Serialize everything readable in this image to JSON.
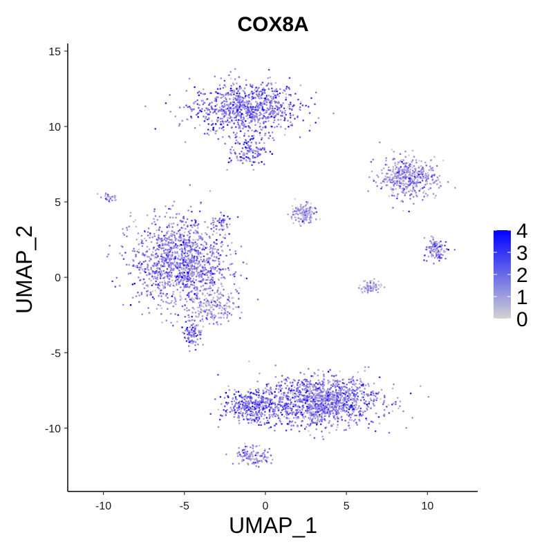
{
  "chart_data": {
    "type": "scatter",
    "title": "COX8A",
    "xlabel": "UMAP_1",
    "ylabel": "UMAP_2",
    "xlim": [
      -12.2,
      13.1
    ],
    "ylim": [
      -14.2,
      15.5
    ],
    "x_ticks": [
      -10,
      -5,
      0,
      5,
      10
    ],
    "y_ticks": [
      -10,
      -5,
      0,
      5,
      10,
      15
    ],
    "grid": false,
    "legend": {
      "placement": "right",
      "type": "colorbar",
      "range": [
        0,
        4
      ],
      "ticks": [
        0,
        1,
        2,
        3,
        4
      ],
      "low_color": "#d3d3d3",
      "high_color": "#0000ff"
    },
    "point_color_mid": "#8f7be8",
    "clusters": [
      {
        "name": "top",
        "center": [
          -1.2,
          11.2
        ],
        "spread": [
          3.0,
          1.6
        ],
        "n": 900,
        "mean_expr": 2.0
      },
      {
        "name": "top-tail",
        "center": [
          -1.0,
          8.3
        ],
        "spread": [
          0.9,
          0.8
        ],
        "n": 120,
        "mean_expr": 2.2
      },
      {
        "name": "left-large",
        "center": [
          -5.2,
          1.0
        ],
        "spread": [
          2.7,
          2.6
        ],
        "n": 1300,
        "mean_expr": 1.8
      },
      {
        "name": "left-tail",
        "center": [
          -3.2,
          -2.0
        ],
        "spread": [
          1.3,
          0.9
        ],
        "n": 180,
        "mean_expr": 1.2
      },
      {
        "name": "left-small",
        "center": [
          -4.5,
          -3.7
        ],
        "spread": [
          0.5,
          0.8
        ],
        "n": 90,
        "mean_expr": 2.3
      },
      {
        "name": "bottom-large",
        "center": [
          3.4,
          -8.2
        ],
        "spread": [
          3.4,
          1.5
        ],
        "n": 1300,
        "mean_expr": 1.9
      },
      {
        "name": "bottom-left-arm",
        "center": [
          -0.8,
          -8.6
        ],
        "spread": [
          1.7,
          0.9
        ],
        "n": 350,
        "mean_expr": 2.3
      },
      {
        "name": "bottom-streak",
        "center": [
          -0.8,
          -11.8
        ],
        "spread": [
          1.0,
          0.6
        ],
        "n": 120,
        "mean_expr": 1.6
      },
      {
        "name": "center-small",
        "center": [
          2.3,
          4.2
        ],
        "spread": [
          0.7,
          0.6
        ],
        "n": 150,
        "mean_expr": 1.1
      },
      {
        "name": "right-upper",
        "center": [
          8.8,
          6.6
        ],
        "spread": [
          1.6,
          1.2
        ],
        "n": 450,
        "mean_expr": 1.5
      },
      {
        "name": "right-mid",
        "center": [
          10.5,
          1.8
        ],
        "spread": [
          0.6,
          0.7
        ],
        "n": 110,
        "mean_expr": 1.8
      },
      {
        "name": "right-low",
        "center": [
          6.5,
          -0.6
        ],
        "spread": [
          0.6,
          0.4
        ],
        "n": 80,
        "mean_expr": 1.2
      },
      {
        "name": "far-left-streak",
        "center": [
          -9.7,
          5.3
        ],
        "spread": [
          0.6,
          0.3
        ],
        "n": 25,
        "mean_expr": 1.6
      },
      {
        "name": "center-left-small",
        "center": [
          -2.6,
          3.6
        ],
        "spread": [
          0.3,
          0.6
        ],
        "n": 35,
        "mean_expr": 1.8
      }
    ]
  }
}
